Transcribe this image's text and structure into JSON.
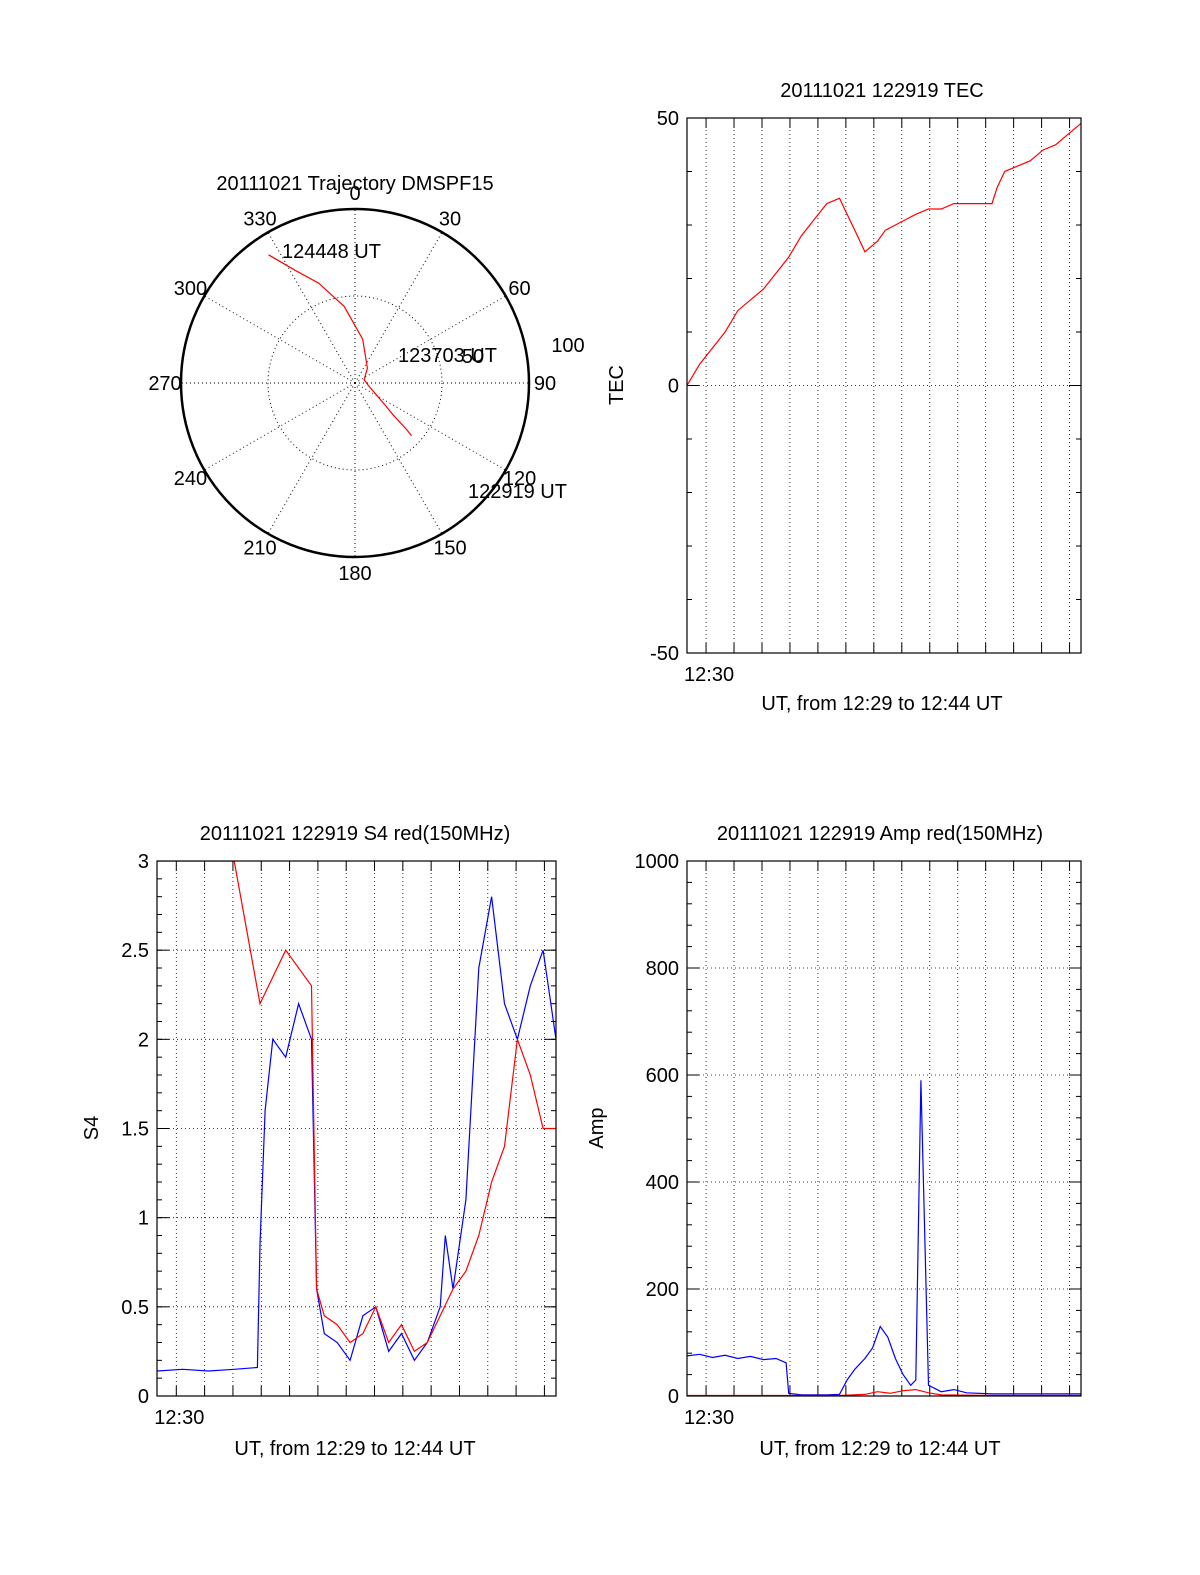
{
  "colors": {
    "red": "#ff0000",
    "blue": "#0000ff",
    "axis": "#000000",
    "grid": "#000000"
  },
  "chart_data": [
    {
      "type": "polar",
      "title": "20111021 Trajectory DMSPF15",
      "angle_labels": [
        "0",
        "30",
        "60",
        "90",
        "120",
        "150",
        "180",
        "210",
        "240",
        "270",
        "300",
        "330"
      ],
      "radial_labels": [
        "100",
        "50"
      ],
      "rlim": [
        0,
        100
      ],
      "grid": true,
      "series": [
        {
          "color": "red",
          "azimuth_elevation": [
            [
              326,
              10
            ],
            [
              332,
              24
            ],
            [
              340,
              35
            ],
            [
              352,
              50
            ],
            [
              10,
              67
            ],
            [
              40,
              80
            ],
            [
              70,
              85
            ],
            [
              100,
              83
            ],
            [
              118,
              78
            ],
            [
              126,
              71
            ],
            [
              130,
              64
            ],
            [
              132,
              54
            ],
            [
              133,
              50
            ]
          ]
        }
      ],
      "annotations": [
        "124448 UT",
        "123703 UT",
        "122919 UT"
      ]
    },
    {
      "type": "line",
      "title": "20111021 122919 TEC",
      "xlabel": "UT, from 12:29 to 12:44 UT",
      "ylabel": "TEC",
      "ylim": [
        -50,
        50
      ],
      "xlim": [
        0,
        15.5
      ],
      "yticks": [
        "50",
        "0",
        "-50"
      ],
      "xticks": [
        "12:30"
      ],
      "grid": true,
      "series": [
        {
          "color": "red",
          "x": [
            0,
            0.5,
            1,
            1.5,
            2,
            2.5,
            3,
            3.5,
            4,
            4.5,
            5,
            5.5,
            6,
            6.3,
            6.6,
            7,
            7.5,
            7.8,
            8.2,
            8.6,
            9,
            9.5,
            10,
            10.5,
            11,
            11.5,
            12,
            12.2,
            12.5,
            13,
            13.5,
            14,
            14.5,
            15,
            15.5
          ],
          "y": [
            0,
            4,
            7,
            10,
            14,
            16,
            18,
            21,
            24,
            28,
            31,
            34,
            35,
            32,
            29,
            25,
            27,
            29,
            30,
            31,
            32,
            33,
            33,
            34,
            34,
            34,
            34,
            37,
            40,
            41,
            42,
            44,
            45,
            47,
            49
          ]
        }
      ]
    },
    {
      "type": "line",
      "title": "20111021 122919 S4 red(150MHz)",
      "xlabel": "UT, from 12:29 to 12:44 UT",
      "ylabel": "S4",
      "ylim": [
        0,
        3
      ],
      "xlim": [
        0,
        15.5
      ],
      "yticks": [
        "3",
        "2.5",
        "2",
        "1.5",
        "1",
        "0.5",
        "0"
      ],
      "xticks": [
        "12:30"
      ],
      "grid": true,
      "series": [
        {
          "color": "blue",
          "x": [
            0,
            1,
            2,
            3,
            3.9,
            4.0,
            4.2,
            4.5,
            5,
            5.5,
            6,
            6.2,
            6.5,
            7,
            7.5,
            8,
            8.5,
            9,
            9.5,
            10,
            10.5,
            11,
            11.2,
            11.5,
            12,
            12.5,
            13,
            13.5,
            14,
            14.5,
            15,
            15.5
          ],
          "y": [
            0.14,
            0.15,
            0.14,
            0.15,
            0.16,
            0.85,
            1.6,
            2.0,
            1.9,
            2.2,
            2.0,
            0.6,
            0.35,
            0.3,
            0.2,
            0.45,
            0.5,
            0.25,
            0.35,
            0.2,
            0.3,
            0.5,
            0.9,
            0.6,
            1.1,
            2.4,
            2.8,
            2.2,
            2.0,
            2.3,
            2.5,
            2.0
          ]
        },
        {
          "color": "red",
          "x": [
            0,
            1,
            2,
            3,
            4,
            5,
            6,
            6.2,
            6.5,
            7,
            7.5,
            8,
            8.5,
            9,
            9.5,
            10,
            10.5,
            11,
            11.5,
            12,
            12.5,
            13,
            13.5,
            14,
            14.5,
            15,
            15.5
          ],
          "y": [
            3,
            3,
            3,
            3,
            2.2,
            2.5,
            2.3,
            0.6,
            0.45,
            0.4,
            0.3,
            0.35,
            0.5,
            0.3,
            0.4,
            0.25,
            0.3,
            0.45,
            0.6,
            0.7,
            0.9,
            1.2,
            1.4,
            2.0,
            1.8,
            1.5,
            1.5
          ]
        }
      ]
    },
    {
      "type": "line",
      "title": "20111021 122919 Amp red(150MHz)",
      "xlabel": "UT, from 12:29 to 12:44 UT",
      "ylabel": "Amp",
      "ylim": [
        0,
        1000
      ],
      "xlim": [
        0,
        15.5
      ],
      "yticks": [
        "1000",
        "800",
        "600",
        "400",
        "200",
        "0"
      ],
      "xticks": [
        "12:30"
      ],
      "grid": true,
      "series": [
        {
          "color": "blue",
          "x": [
            0,
            0.5,
            1,
            1.5,
            2,
            2.5,
            3,
            3.5,
            3.9,
            4.0,
            4.5,
            5,
            5.5,
            6,
            6.3,
            6.6,
            7,
            7.3,
            7.6,
            7.9,
            8.2,
            8.5,
            8.8,
            9,
            9.2,
            9.5,
            10,
            10.5,
            11,
            12,
            13,
            14,
            15,
            15.5
          ],
          "y": [
            75,
            78,
            72,
            76,
            70,
            74,
            68,
            70,
            62,
            5,
            2,
            2,
            2,
            3,
            30,
            50,
            70,
            90,
            130,
            110,
            70,
            40,
            20,
            30,
            590,
            20,
            8,
            12,
            6,
            4,
            4,
            4,
            4,
            4
          ]
        },
        {
          "color": "red",
          "x": [
            0,
            3,
            6,
            7,
            7.5,
            8,
            8.5,
            9,
            9.5,
            10,
            12,
            15.5
          ],
          "y": [
            1,
            1,
            1,
            3,
            8,
            5,
            10,
            12,
            6,
            2,
            1,
            1
          ]
        }
      ]
    }
  ]
}
